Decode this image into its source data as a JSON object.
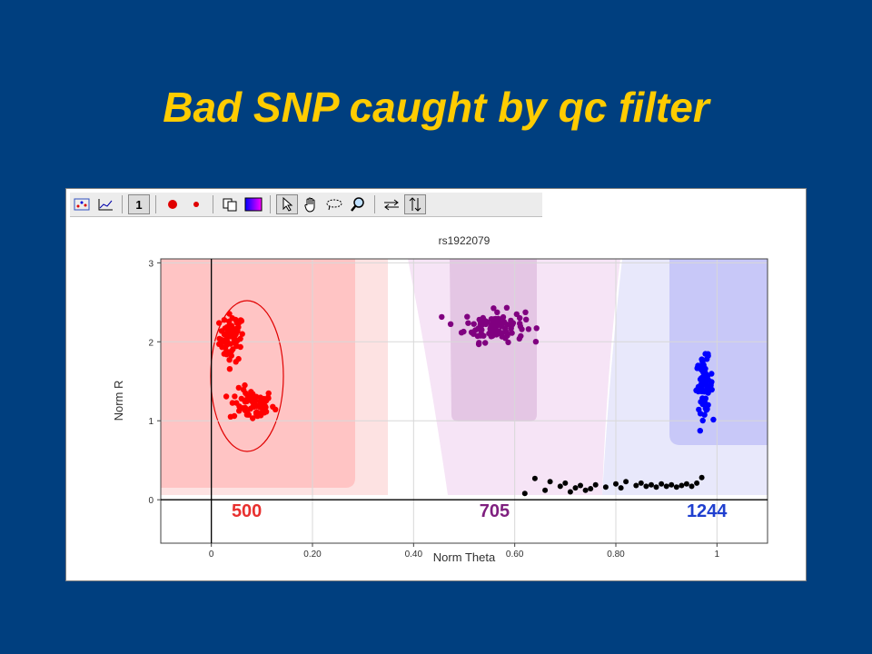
{
  "slide": {
    "title": "Bad SNP caught by qc filter"
  },
  "toolbar": {
    "buttons": [
      {
        "icon": "scatter-plot-icon"
      },
      {
        "icon": "line-plot-icon"
      },
      {
        "icon": "number-one-icon",
        "label": "1"
      },
      {
        "icon": "large-dot-icon"
      },
      {
        "icon": "small-dot-icon"
      },
      {
        "icon": "copy-icon"
      },
      {
        "icon": "color-scheme-icon"
      },
      {
        "icon": "pointer-icon"
      },
      {
        "icon": "hand-pan-icon"
      },
      {
        "icon": "lasso-icon"
      },
      {
        "icon": "zoom-icon"
      },
      {
        "icon": "horizontal-arrows-icon"
      },
      {
        "icon": "vertical-arrows-icon"
      }
    ]
  },
  "colors": {
    "aa": "#ff0000",
    "ab": "#800080",
    "bb": "#0000ff",
    "nocall": "#000000",
    "title": "#ffcc00",
    "background": "#003f7f"
  },
  "chart_data": {
    "type": "scatter",
    "title": "rs1922079",
    "xlabel": "Norm Theta",
    "ylabel": "Norm R",
    "xlim": [
      -0.1,
      1.1
    ],
    "ylim": [
      -0.55,
      3.05
    ],
    "x_ticks": [
      "0",
      "0.20",
      "0.40",
      "0.60",
      "0.80",
      "1"
    ],
    "x_tick_values": [
      0,
      0.2,
      0.4,
      0.6,
      0.8,
      1.0
    ],
    "y_ticks": [
      "0",
      "1",
      "2",
      "3"
    ],
    "y_tick_values": [
      0,
      1,
      2,
      3
    ],
    "grid": true,
    "cluster_counts": [
      {
        "label": "500",
        "x": 0.07,
        "color": "#e8302f"
      },
      {
        "label": "705",
        "x": 0.56,
        "color": "#7f1f7f"
      },
      {
        "label": "1244",
        "x": 0.98,
        "color": "#1f3fcf"
      }
    ],
    "series": [
      {
        "color": "#ff0000",
        "clusters": [
          {
            "cx": 0.04,
            "cy": 2.05,
            "sx": 0.012,
            "sy": 0.15,
            "n": 70
          },
          {
            "cx": 0.08,
            "cy": 1.2,
            "sx": 0.022,
            "sy": 0.1,
            "n": 70
          }
        ]
      },
      {
        "color": "#800080",
        "clusters": [
          {
            "cx": 0.56,
            "cy": 2.2,
            "sx": 0.03,
            "sy": 0.1,
            "n": 110
          }
        ]
      },
      {
        "color": "#0000ff",
        "clusters": [
          {
            "cx": 0.975,
            "cy": 1.45,
            "sx": 0.008,
            "sy": 0.17,
            "n": 70
          }
        ]
      },
      {
        "color": "#000000",
        "points": [
          [
            0.64,
            0.27
          ],
          [
            0.67,
            0.23
          ],
          [
            0.69,
            0.17
          ],
          [
            0.7,
            0.21
          ],
          [
            0.72,
            0.15
          ],
          [
            0.73,
            0.18
          ],
          [
            0.75,
            0.14
          ],
          [
            0.76,
            0.19
          ],
          [
            0.78,
            0.16
          ],
          [
            0.8,
            0.2
          ],
          [
            0.81,
            0.15
          ],
          [
            0.82,
            0.23
          ],
          [
            0.84,
            0.18
          ],
          [
            0.85,
            0.21
          ],
          [
            0.86,
            0.17
          ],
          [
            0.87,
            0.19
          ],
          [
            0.88,
            0.16
          ],
          [
            0.89,
            0.2
          ],
          [
            0.9,
            0.17
          ],
          [
            0.91,
            0.19
          ],
          [
            0.92,
            0.16
          ],
          [
            0.93,
            0.18
          ],
          [
            0.94,
            0.2
          ],
          [
            0.95,
            0.17
          ],
          [
            0.96,
            0.21
          ],
          [
            0.97,
            0.28
          ],
          [
            0.62,
            0.08
          ],
          [
            0.66,
            0.12
          ],
          [
            0.71,
            0.1
          ],
          [
            0.74,
            0.12
          ]
        ]
      }
    ]
  }
}
